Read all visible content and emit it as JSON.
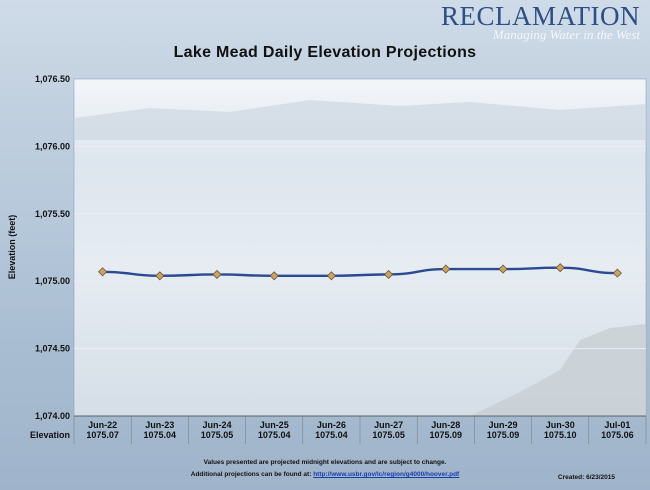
{
  "brand": {
    "name": "RECLAMATION",
    "tagline": "Managing Water in the West"
  },
  "chart_data": {
    "type": "line",
    "title": "Lake Mead Daily Elevation Projections",
    "ylabel": "Elevation (feet)",
    "xlabel": "",
    "ylim": [
      1074.0,
      1076.5
    ],
    "yticks": [
      "1,074.00",
      "1,074.50",
      "1,075.00",
      "1,075.50",
      "1,076.00",
      "1,076.50"
    ],
    "ytick_values": [
      1074.0,
      1074.5,
      1075.0,
      1075.5,
      1076.0,
      1076.5
    ],
    "categories": [
      "Jun-22",
      "Jun-23",
      "Jun-24",
      "Jun-25",
      "Jun-26",
      "Jun-27",
      "Jun-28",
      "Jun-29",
      "Jun-30",
      "Jul-01"
    ],
    "series": [
      {
        "name": "Elevation",
        "values": [
          1075.07,
          1075.04,
          1075.05,
          1075.04,
          1075.04,
          1075.05,
          1075.09,
          1075.09,
          1075.1,
          1075.06
        ],
        "value_labels": [
          "1075.07",
          "1075.04",
          "1075.05",
          "1075.04",
          "1075.04",
          "1075.05",
          "1075.09",
          "1075.09",
          "1075.10",
          "1075.06"
        ]
      }
    ],
    "grid": true,
    "colors": {
      "line": "#2b4a93",
      "marker": "#c8a468",
      "grid": "#e8eef4"
    }
  },
  "footer": {
    "note1": "Values presented are projected midnight elevations and are subject to change.",
    "note2_prefix": "Additional projections can be found at: ",
    "note2_link": "http://www.usbr.gov/lc/region/g4000/hoover.pdf",
    "created": "Created:  6/23/2015"
  }
}
